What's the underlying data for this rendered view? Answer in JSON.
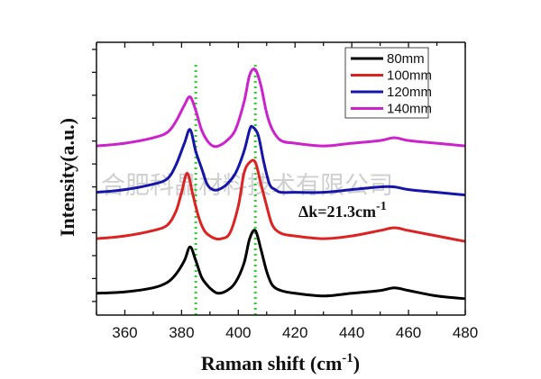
{
  "chart_data": {
    "type": "line",
    "title": "",
    "xlabel": "Raman shift (cm",
    "xlabel_sup": "-1",
    "xlabel_close": ")",
    "ylabel": "Intensity(a.u.)",
    "xlim": [
      350,
      480
    ],
    "ylim": [
      0,
      100
    ],
    "x_ticks": [
      360,
      380,
      400,
      420,
      440,
      460,
      480
    ],
    "y_ticks_labeled": false,
    "grid": false,
    "legend_position": "top-right",
    "annotation": {
      "text": "Δk=21.3cm",
      "sup": "-1"
    },
    "reference_lines": [
      385,
      406
    ],
    "reference_line_color": "#33cc33",
    "watermark": "合肥科晶材料技术有限公司",
    "series": [
      {
        "name": "80mm",
        "color": "#000000",
        "x": [
          350,
          360,
          370,
          375,
          378,
          381,
          383,
          385,
          387,
          389,
          391,
          393,
          396,
          399,
          402,
          404,
          406,
          408,
          410,
          412,
          415,
          420,
          430,
          440,
          450,
          455,
          460,
          470,
          480
        ],
        "y": [
          8,
          8.5,
          10,
          12,
          15,
          20,
          25,
          20,
          14,
          11,
          9,
          8,
          9,
          12,
          19,
          28,
          31,
          24,
          16,
          11,
          9,
          8,
          7,
          8,
          9,
          10,
          9,
          7,
          6
        ]
      },
      {
        "name": "100mm",
        "color": "#dd2222",
        "x": [
          350,
          360,
          370,
          375,
          378,
          380,
          382,
          384,
          386,
          388,
          390,
          392,
          394,
          397,
          400,
          402,
          404,
          406,
          408,
          410,
          412,
          415,
          420,
          430,
          440,
          450,
          455,
          460,
          470,
          480
        ],
        "y": [
          28,
          29,
          31,
          33,
          38,
          45,
          52,
          44,
          36,
          31,
          29,
          28,
          28,
          30,
          40,
          52,
          56,
          56,
          48,
          40,
          33,
          30,
          29,
          28,
          29,
          31,
          32,
          31,
          29,
          27
        ]
      },
      {
        "name": "120mm",
        "color": "#1515aa",
        "x": [
          350,
          360,
          370,
          375,
          378,
          381,
          383,
          385,
          387,
          389,
          391,
          393,
          396,
          399,
          402,
          404,
          405,
          407,
          409,
          411,
          413,
          415,
          420,
          430,
          440,
          450,
          455,
          460,
          470,
          480
        ],
        "y": [
          45,
          46,
          48,
          50,
          55,
          63,
          68,
          60,
          54,
          48,
          46,
          46,
          48,
          52,
          60,
          68,
          69,
          66,
          56,
          48,
          46,
          45,
          45,
          45,
          46,
          47,
          47,
          46,
          45,
          44
        ]
      },
      {
        "name": "140mm",
        "color": "#cc22cc",
        "x": [
          350,
          360,
          370,
          375,
          378,
          381,
          383,
          385,
          387,
          389,
          391,
          393,
          396,
          399,
          402,
          404,
          406,
          408,
          410,
          412,
          415,
          420,
          430,
          440,
          450,
          455,
          460,
          470,
          480
        ],
        "y": [
          62,
          63,
          65,
          67,
          71,
          77,
          80,
          75,
          68,
          64,
          62,
          62,
          64,
          68,
          78,
          88,
          90,
          84,
          74,
          68,
          64,
          63,
          62,
          63,
          64,
          65,
          64,
          63,
          62
        ]
      }
    ]
  }
}
